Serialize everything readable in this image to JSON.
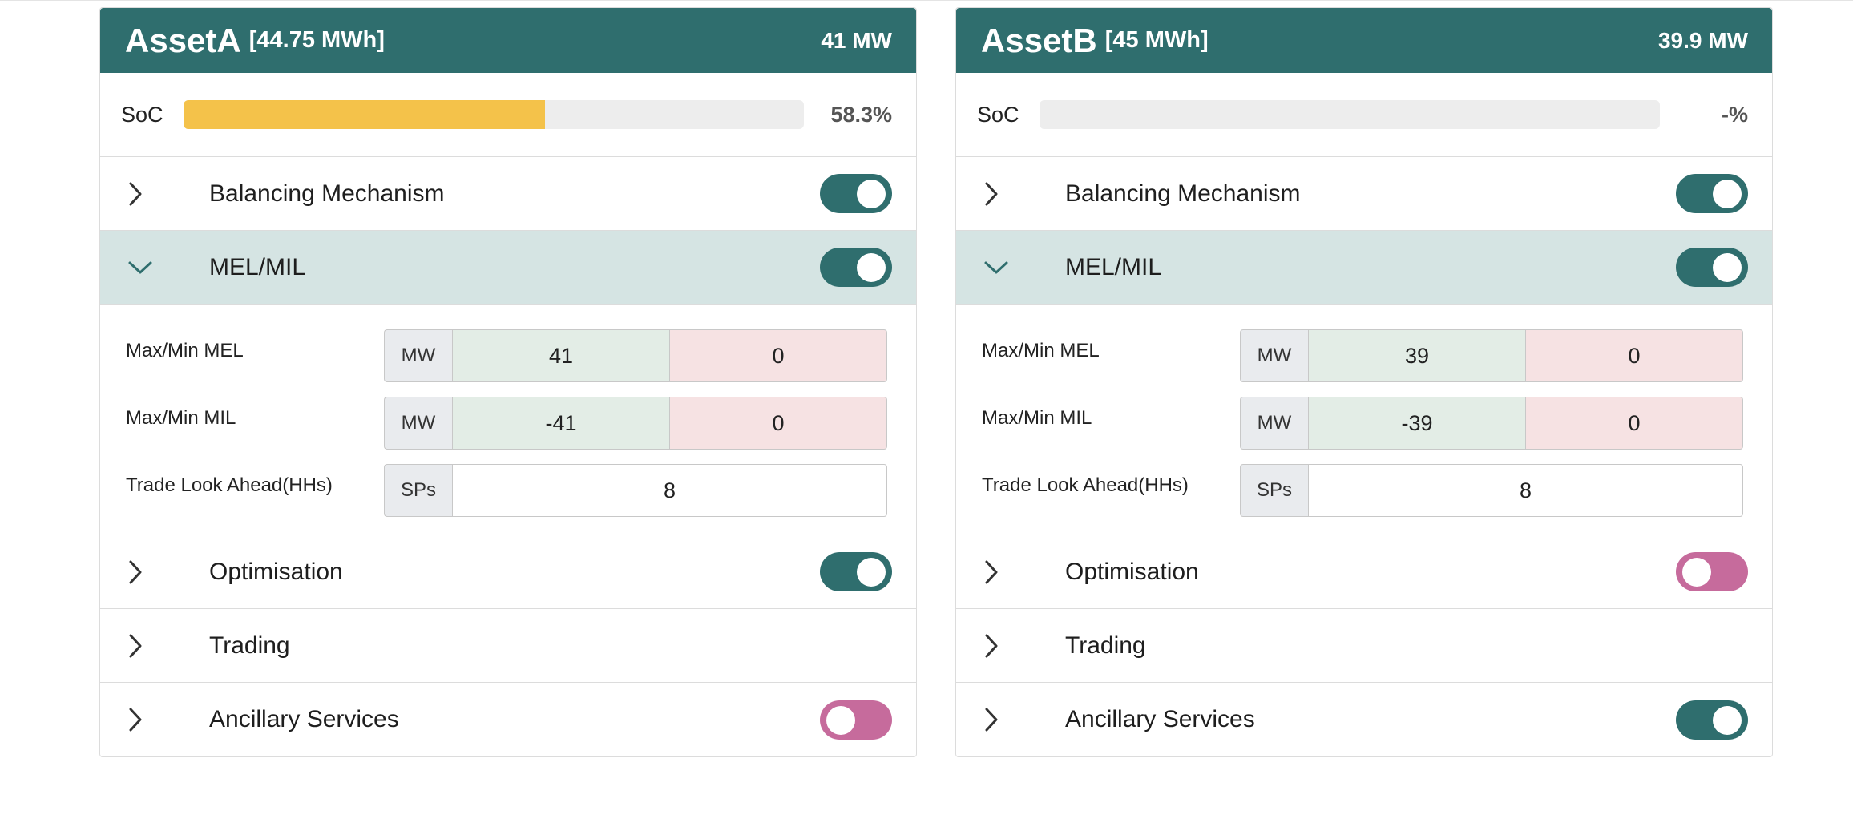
{
  "assets": [
    {
      "name": "AssetA",
      "capacity": "[44.75 MWh]",
      "power": "41 MW",
      "soc": {
        "label": "SoC",
        "value_text": "58.3%",
        "fraction": 0.583
      },
      "sections": {
        "balancing": {
          "label": "Balancing Mechanism",
          "toggle": true
        },
        "melmil": {
          "label": "MEL/MIL",
          "toggle": true,
          "expanded": true,
          "rows": {
            "mel": {
              "label": "Max/Min MEL",
              "unit": "MW",
              "max": "41",
              "min": "0"
            },
            "mil": {
              "label": "Max/Min MIL",
              "unit": "MW",
              "max": "-41",
              "min": "0"
            },
            "lookahead": {
              "label": "Trade Look Ahead(HHs)",
              "unit": "SPs",
              "value": "8"
            }
          }
        },
        "optimisation": {
          "label": "Optimisation",
          "toggle": true
        },
        "trading": {
          "label": "Trading"
        },
        "ancillary": {
          "label": "Ancillary Services",
          "toggle": false
        }
      }
    },
    {
      "name": "AssetB",
      "capacity": "[45 MWh]",
      "power": "39.9 MW",
      "soc": {
        "label": "SoC",
        "value_text": "-%",
        "fraction": 0
      },
      "sections": {
        "balancing": {
          "label": "Balancing Mechanism",
          "toggle": true
        },
        "melmil": {
          "label": "MEL/MIL",
          "toggle": true,
          "expanded": true,
          "rows": {
            "mel": {
              "label": "Max/Min MEL",
              "unit": "MW",
              "max": "39",
              "min": "0"
            },
            "mil": {
              "label": "Max/Min MIL",
              "unit": "MW",
              "max": "-39",
              "min": "0"
            },
            "lookahead": {
              "label": "Trade Look Ahead(HHs)",
              "unit": "SPs",
              "value": "8"
            }
          }
        },
        "optimisation": {
          "label": "Optimisation",
          "toggle": false
        },
        "trading": {
          "label": "Trading"
        },
        "ancillary": {
          "label": "Ancillary Services",
          "toggle": true
        }
      }
    }
  ],
  "icons": {
    "collapsed": "chevron-right-icon",
    "expanded": "chevron-down-icon"
  },
  "colors": {
    "header": "#2f6e6e",
    "toggle_on": "#2f6e6e",
    "toggle_off": "#c66b9c",
    "soc_fill": "#f4c24a",
    "expanded_bg": "#d5e4e3",
    "max_bg": "#e3ede6",
    "min_bg": "#f6e2e3"
  }
}
